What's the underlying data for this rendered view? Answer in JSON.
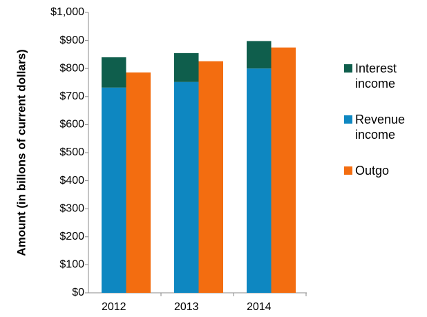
{
  "chart_data": {
    "type": "bar",
    "ylabel": "Amount (in billons of current dollars)",
    "categories": [
      "2012",
      "2013",
      "2014"
    ],
    "series": [
      {
        "name": "Interest income",
        "color": "#0f5e4c",
        "values": [
          108,
          103,
          98
        ],
        "stack": 0
      },
      {
        "name": "Revenue income",
        "color": "#0e87c1",
        "values": [
          732,
          752,
          800
        ],
        "stack": 0
      },
      {
        "name": "Outgo",
        "color": "#f36d10",
        "values": [
          786,
          826,
          875
        ],
        "stack": 1
      }
    ],
    "ylim": [
      0,
      1000
    ],
    "yticks": [
      {
        "value": 0,
        "label": "$0"
      },
      {
        "value": 100,
        "label": "$100"
      },
      {
        "value": 200,
        "label": "$200"
      },
      {
        "value": 300,
        "label": "$300"
      },
      {
        "value": 400,
        "label": "$400"
      },
      {
        "value": 500,
        "label": "$500"
      },
      {
        "value": 600,
        "label": "$600"
      },
      {
        "value": 700,
        "label": "$700"
      },
      {
        "value": 800,
        "label": "$800"
      },
      {
        "value": 900,
        "label": "$900"
      },
      {
        "value": 1000,
        "label": "$1,000"
      }
    ],
    "legend": "right"
  }
}
